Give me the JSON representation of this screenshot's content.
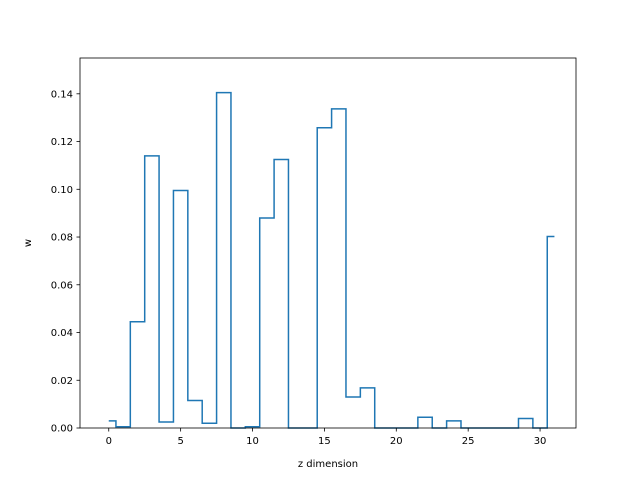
{
  "chart_data": {
    "type": "line",
    "drawstyle": "steps-mid",
    "xlabel": "z dimension",
    "ylabel": "w",
    "xlim": [
      -2.0,
      32.5
    ],
    "ylim": [
      0.0,
      0.155
    ],
    "xticks": [
      0,
      5,
      10,
      15,
      20,
      25,
      30
    ],
    "yticks": [
      0.0,
      0.02,
      0.04,
      0.06,
      0.08,
      0.1,
      0.12,
      0.14
    ],
    "grid": false,
    "line_color": "#1f77b4",
    "x": [
      0,
      1,
      2,
      3,
      4,
      5,
      6,
      7,
      8,
      9,
      10,
      11,
      12,
      13,
      14,
      15,
      16,
      17,
      18,
      19,
      20,
      21,
      22,
      23,
      24,
      25,
      26,
      27,
      28,
      29,
      30,
      31
    ],
    "values": [
      0.003,
      0.0005,
      0.0445,
      0.114,
      0.0025,
      0.0995,
      0.0115,
      0.002,
      0.1405,
      0.0,
      0.0005,
      0.088,
      0.1125,
      0.0,
      0.0,
      0.1258,
      0.1337,
      0.013,
      0.0168,
      0.0,
      0.0,
      0.0,
      0.0045,
      0.0,
      0.003,
      0.0,
      0.0,
      0.0,
      0.0,
      0.004,
      0.0,
      0.0802
    ]
  }
}
